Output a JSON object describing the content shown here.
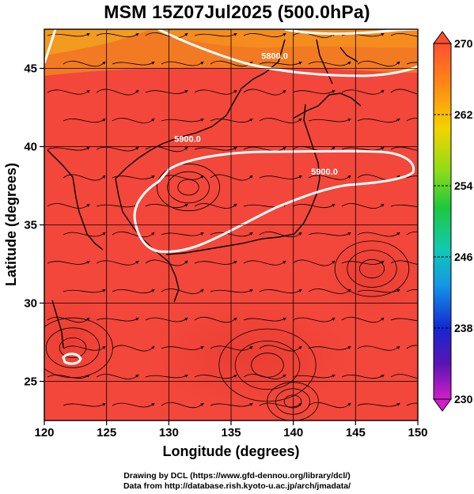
{
  "title": "MSM 15Z07Jul2025 (500.0hPa)",
  "footer": {
    "line1": "Drawing by DCL (https://www.gfd-dennou.org/library/dcl/)",
    "line2": "Data from http://database.rish.kyoto-u.ac.jp/arch/jmadata/"
  },
  "chart_data": {
    "type": "heatmap",
    "title": "MSM 15Z07Jul2025 (500.0hPa)",
    "xlabel": "Longitude (degrees)",
    "ylabel": "Latitude  (degrees)",
    "xlim": [
      120,
      150
    ],
    "ylim": [
      22.5,
      47.5
    ],
    "x_ticks": [
      "120",
      "125",
      "130",
      "135",
      "140",
      "145",
      "150"
    ],
    "y_ticks": [
      "25",
      "30",
      "35",
      "40",
      "45"
    ],
    "grid": true,
    "colorbar": {
      "min": 230,
      "max": 270,
      "tick_labels": [
        "270",
        "262",
        "254",
        "246",
        "238",
        "230"
      ]
    },
    "contours": [
      {
        "label": "5800.0",
        "lon": 138.5,
        "lat": 45.6
      },
      {
        "label": "5900.0",
        "lon": 131.5,
        "lat": 40.3
      },
      {
        "label": "5900.0",
        "lon": 142.5,
        "lat": 38.2
      }
    ],
    "overlay": "wind streamlines",
    "colors": {
      "field_main": "#f2473a",
      "field_north": "#f27a22",
      "contour": "#ffffff"
    }
  }
}
